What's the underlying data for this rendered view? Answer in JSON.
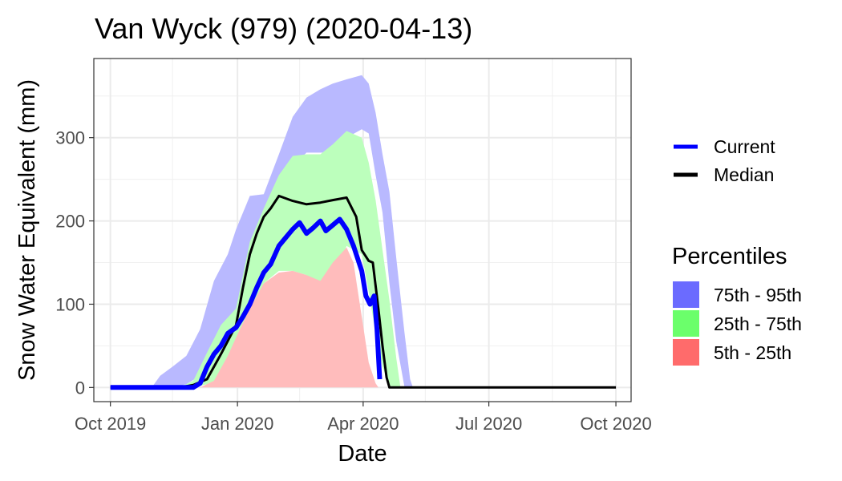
{
  "chart_data": {
    "type": "area",
    "title": "Van Wyck (979) (2020-04-13)",
    "xlabel": "Date",
    "ylabel": "Snow Water Equivalent (mm)",
    "xlim": [
      "2019-09-19",
      "2020-10-12"
    ],
    "ylim": [
      -17,
      395
    ],
    "grid": true,
    "x_ticks": [
      {
        "date": "2019-10-01",
        "label": "Oct 2019"
      },
      {
        "date": "2020-01-01",
        "label": "Jan 2020"
      },
      {
        "date": "2020-04-01",
        "label": "Apr 2020"
      },
      {
        "date": "2020-07-01",
        "label": "Jul 2020"
      },
      {
        "date": "2020-10-01",
        "label": "Oct 2020"
      }
    ],
    "x_minor": [
      "2019-11-15",
      "2020-02-15",
      "2020-05-16",
      "2020-08-16"
    ],
    "y_ticks": [
      0,
      100,
      200,
      300
    ],
    "y_minor": [
      50,
      150,
      250,
      350
    ],
    "legend_lines": {
      "position": "right",
      "entries": [
        {
          "name": "Current",
          "color": "#0000ff"
        },
        {
          "name": "Median",
          "color": "#000000"
        }
      ]
    },
    "legend_bands": {
      "title": "Percentiles",
      "position": "right",
      "entries": [
        {
          "name": "75th - 95th",
          "color": "#6b6bff"
        },
        {
          "name": "25th - 75th",
          "color": "#6bff6b"
        },
        {
          "name": "5th - 25th",
          "color": "#ff6b6b"
        }
      ]
    },
    "bands": [
      {
        "name": "75th - 95th",
        "color": "#b9b9ff",
        "points": [
          [
            "2019-10-31",
            0,
            0
          ],
          [
            "2019-11-06",
            0,
            14
          ],
          [
            "2019-11-15",
            0,
            25
          ],
          [
            "2019-11-25",
            4,
            38
          ],
          [
            "2019-12-05",
            14,
            70
          ],
          [
            "2019-12-15",
            32,
            128
          ],
          [
            "2019-12-25",
            60,
            160
          ],
          [
            "2019-12-31",
            95,
            190
          ],
          [
            "2020-01-10",
            135,
            230
          ],
          [
            "2020-01-20",
            175,
            232
          ],
          [
            "2020-01-31",
            225,
            280
          ],
          [
            "2020-02-10",
            265,
            325
          ],
          [
            "2020-02-20",
            282,
            348
          ],
          [
            "2020-03-01",
            282,
            358
          ],
          [
            "2020-03-10",
            282,
            365
          ],
          [
            "2020-03-20",
            300,
            370
          ],
          [
            "2020-03-31",
            310,
            375
          ],
          [
            "2020-04-05",
            305,
            365
          ],
          [
            "2020-04-10",
            255,
            330
          ],
          [
            "2020-04-15",
            210,
            280
          ],
          [
            "2020-04-20",
            125,
            235
          ],
          [
            "2020-04-25",
            55,
            155
          ],
          [
            "2020-05-01",
            0,
            65
          ],
          [
            "2020-05-05",
            0,
            10
          ],
          [
            "2020-05-07",
            0,
            0
          ]
        ]
      },
      {
        "name": "25th - 75th",
        "color": "#bcffbc",
        "points": [
          [
            "2019-11-20",
            0,
            0
          ],
          [
            "2019-11-30",
            0,
            8
          ],
          [
            "2019-12-10",
            4,
            42
          ],
          [
            "2019-12-20",
            12,
            75
          ],
          [
            "2019-12-31",
            35,
            95
          ],
          [
            "2020-01-10",
            80,
            175
          ],
          [
            "2020-01-20",
            125,
            215
          ],
          [
            "2020-01-31",
            140,
            255
          ],
          [
            "2020-02-10",
            140,
            278
          ],
          [
            "2020-02-20",
            135,
            280
          ],
          [
            "2020-03-01",
            115,
            280
          ],
          [
            "2020-03-10",
            125,
            292
          ],
          [
            "2020-03-20",
            170,
            308
          ],
          [
            "2020-03-31",
            160,
            300
          ],
          [
            "2020-04-05",
            115,
            270
          ],
          [
            "2020-04-10",
            65,
            225
          ],
          [
            "2020-04-15",
            25,
            165
          ],
          [
            "2020-04-20",
            2,
            105
          ],
          [
            "2020-04-25",
            0,
            35
          ],
          [
            "2020-04-28",
            0,
            0
          ]
        ]
      },
      {
        "name": "5th - 25th",
        "color": "#ffbcbc",
        "points": [
          [
            "2019-12-05",
            0,
            0
          ],
          [
            "2019-12-15",
            0,
            8
          ],
          [
            "2019-12-25",
            0,
            38
          ],
          [
            "2019-12-31",
            0,
            60
          ],
          [
            "2020-01-10",
            0,
            95
          ],
          [
            "2020-01-20",
            0,
            125
          ],
          [
            "2020-01-31",
            0,
            138
          ],
          [
            "2020-02-10",
            0,
            140
          ],
          [
            "2020-02-20",
            0,
            135
          ],
          [
            "2020-03-01",
            0,
            128
          ],
          [
            "2020-03-10",
            0,
            150
          ],
          [
            "2020-03-20",
            0,
            168
          ],
          [
            "2020-03-25",
            0,
            150
          ],
          [
            "2020-03-31",
            0,
            85
          ],
          [
            "2020-04-05",
            0,
            30
          ],
          [
            "2020-04-10",
            0,
            5
          ],
          [
            "2020-04-12",
            0,
            0
          ]
        ]
      }
    ],
    "series": [
      {
        "name": "Median",
        "color": "#000000",
        "points": [
          [
            "2019-10-01",
            0
          ],
          [
            "2019-11-20",
            0
          ],
          [
            "2019-11-30",
            3
          ],
          [
            "2019-12-10",
            10
          ],
          [
            "2019-12-20",
            40
          ],
          [
            "2019-12-31",
            75
          ],
          [
            "2020-01-05",
            120
          ],
          [
            "2020-01-10",
            160
          ],
          [
            "2020-01-15",
            185
          ],
          [
            "2020-01-20",
            205
          ],
          [
            "2020-01-25",
            215
          ],
          [
            "2020-01-31",
            230
          ],
          [
            "2020-02-10",
            224
          ],
          [
            "2020-02-20",
            220
          ],
          [
            "2020-03-01",
            222
          ],
          [
            "2020-03-10",
            225
          ],
          [
            "2020-03-20",
            228
          ],
          [
            "2020-03-27",
            205
          ],
          [
            "2020-03-31",
            165
          ],
          [
            "2020-04-05",
            152
          ],
          [
            "2020-04-08",
            150
          ],
          [
            "2020-04-12",
            95
          ],
          [
            "2020-04-15",
            50
          ],
          [
            "2020-04-18",
            12
          ],
          [
            "2020-04-20",
            0
          ],
          [
            "2020-10-01",
            0
          ]
        ]
      },
      {
        "name": "Current",
        "color": "#0000ff",
        "points": [
          [
            "2019-10-01",
            0
          ],
          [
            "2019-11-30",
            0
          ],
          [
            "2019-12-05",
            5
          ],
          [
            "2019-12-10",
            25
          ],
          [
            "2019-12-15",
            40
          ],
          [
            "2019-12-20",
            50
          ],
          [
            "2019-12-25",
            65
          ],
          [
            "2019-12-31",
            72
          ],
          [
            "2020-01-05",
            85
          ],
          [
            "2020-01-10",
            100
          ],
          [
            "2020-01-15",
            120
          ],
          [
            "2020-01-20",
            138
          ],
          [
            "2020-01-25",
            148
          ],
          [
            "2020-01-31",
            170
          ],
          [
            "2020-02-05",
            180
          ],
          [
            "2020-02-10",
            190
          ],
          [
            "2020-02-15",
            198
          ],
          [
            "2020-02-20",
            185
          ],
          [
            "2020-02-25",
            192
          ],
          [
            "2020-03-01",
            200
          ],
          [
            "2020-03-05",
            188
          ],
          [
            "2020-03-10",
            195
          ],
          [
            "2020-03-15",
            202
          ],
          [
            "2020-03-20",
            190
          ],
          [
            "2020-03-25",
            170
          ],
          [
            "2020-03-31",
            140
          ],
          [
            "2020-04-03",
            110
          ],
          [
            "2020-04-06",
            100
          ],
          [
            "2020-04-09",
            110
          ],
          [
            "2020-04-11",
            70
          ],
          [
            "2020-04-13",
            10
          ]
        ]
      }
    ]
  }
}
